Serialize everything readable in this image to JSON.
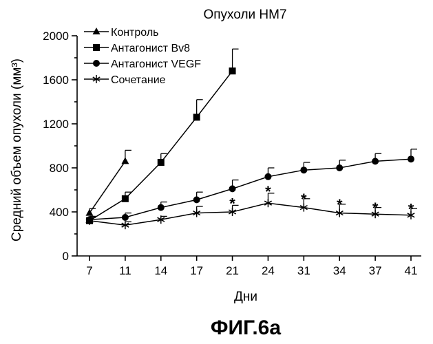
{
  "chart_data": {
    "type": "line",
    "title": "Опухоли HM7",
    "xlabel": "Дни",
    "ylabel": "Средний объем опухоли (мм³)",
    "categories": [
      "7",
      "11",
      "14",
      "17",
      "21",
      "24",
      "31",
      "34",
      "37",
      "41"
    ],
    "ylim": [
      0,
      2000
    ],
    "yticks": [
      "0",
      "400",
      "800",
      "1200",
      "1600",
      "2000"
    ],
    "legend_position": "top-left",
    "grid": false,
    "series": [
      {
        "name": "Контроль",
        "marker": "triangle",
        "values": [
          390,
          860,
          null,
          null,
          null,
          null,
          null,
          null,
          null,
          null
        ],
        "err": [
          40,
          100,
          null,
          null,
          null,
          null,
          null,
          null,
          null,
          null
        ]
      },
      {
        "name": "Антагонист Bv8",
        "marker": "square",
        "values": [
          320,
          520,
          850,
          1260,
          1680,
          null,
          null,
          null,
          null,
          null
        ],
        "err": [
          30,
          60,
          80,
          160,
          200,
          null,
          null,
          null,
          null,
          null
        ]
      },
      {
        "name": "Антагонист VEGF",
        "marker": "circle",
        "values": [
          330,
          350,
          440,
          510,
          610,
          720,
          780,
          800,
          860,
          880
        ],
        "err": [
          30,
          40,
          50,
          70,
          80,
          80,
          70,
          70,
          70,
          90
        ]
      },
      {
        "name": "Сочетание",
        "marker": "asterisk",
        "values": [
          320,
          280,
          330,
          390,
          400,
          480,
          440,
          390,
          380,
          370
        ],
        "err": [
          30,
          30,
          30,
          60,
          60,
          90,
          80,
          80,
          60,
          60
        ]
      }
    ],
    "annotations": [
      {
        "text": "*",
        "x": "21",
        "y": 490
      },
      {
        "text": "*",
        "x": "24",
        "y": 600
      },
      {
        "text": "*",
        "x": "31",
        "y": 530
      },
      {
        "text": "*",
        "x": "34",
        "y": 480
      },
      {
        "text": "*",
        "x": "37",
        "y": 450
      },
      {
        "text": "*",
        "x": "41",
        "y": 440
      }
    ]
  },
  "caption": "ФИГ.6а"
}
